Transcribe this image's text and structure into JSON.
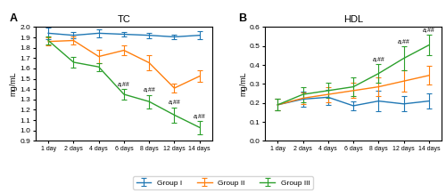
{
  "chart_data": [
    {
      "type": "line",
      "panel_label": "A",
      "title": "TC",
      "y_label": "mg/mL",
      "categories": [
        "1 day",
        "2 days",
        "4 days",
        "6 days",
        "8 days",
        "12 days",
        "14 days"
      ],
      "ylim": [
        0.9,
        2.0
      ],
      "yticks": [
        0.9,
        {
          "value": 1,
          "label": "1.0"
        },
        1.1,
        1.2,
        1.3,
        1.4,
        1.5,
        1.6,
        1.7,
        1.8,
        1.9,
        {
          "value": 2,
          "label": "2.0"
        }
      ],
      "legend": "lower center",
      "series": [
        {
          "name": "Group I",
          "values": [
            1.94,
            1.92,
            1.94,
            1.93,
            1.92,
            1.905,
            1.92
          ],
          "errors": [
            0.055,
            0.03,
            0.04,
            0.025,
            0.025,
            0.02,
            0.04
          ]
        },
        {
          "name": "Group II",
          "values": [
            1.86,
            1.87,
            1.715,
            1.775,
            1.655,
            1.41,
            1.525
          ],
          "errors": [
            0.04,
            0.04,
            0.065,
            0.05,
            0.075,
            0.04,
            0.055
          ]
        },
        {
          "name": "Group III",
          "values": [
            1.87,
            1.66,
            1.615,
            1.35,
            1.28,
            1.15,
            1.03
          ],
          "errors": [
            0.04,
            0.05,
            0.04,
            0.055,
            0.065,
            0.075,
            0.065
          ]
        }
      ],
      "annotations": [
        {
          "text": "a,##",
          "series": "Group III",
          "category": "6 days"
        },
        {
          "text": "a,##",
          "series": "Group III",
          "category": "8 days"
        },
        {
          "text": "a,##",
          "series": "Group III",
          "category": "12 days"
        },
        {
          "text": "a,##",
          "series": "Group III",
          "category": "14 days"
        }
      ]
    },
    {
      "type": "line",
      "panel_label": "B",
      "title": "HDL",
      "y_label": "mg/mL",
      "categories": [
        "1 day",
        "2 days",
        "4 days",
        "6 days",
        "8 days",
        "12 days",
        "14 days"
      ],
      "ylim": [
        0,
        0.6
      ],
      "yticks": [
        {
          "value": 0,
          "label": "0.0"
        },
        0.1,
        0.2,
        0.3,
        0.4,
        0.5,
        0.6
      ],
      "series": [
        {
          "name": "Group I",
          "values": [
            0.19,
            0.22,
            0.23,
            0.185,
            0.21,
            0.195,
            0.21
          ],
          "errors": [
            0.03,
            0.04,
            0.04,
            0.025,
            0.055,
            0.04,
            0.04
          ]
        },
        {
          "name": "Group II",
          "values": [
            0.19,
            0.225,
            0.245,
            0.265,
            0.285,
            0.315,
            0.345
          ],
          "errors": [
            0.03,
            0.03,
            0.04,
            0.04,
            0.05,
            0.055,
            0.05
          ]
        },
        {
          "name": "Group III",
          "values": [
            0.19,
            0.245,
            0.265,
            0.285,
            0.355,
            0.435,
            0.505
          ],
          "errors": [
            0.03,
            0.04,
            0.04,
            0.05,
            0.05,
            0.065,
            0.055
          ]
        }
      ],
      "annotations": [
        {
          "text": "a,##",
          "series": "Group III",
          "category": "8 days"
        },
        {
          "text": "a,##",
          "series": "Group III",
          "category": "12 days"
        },
        {
          "text": "a,##",
          "series": "Group III",
          "category": "14 days"
        }
      ]
    }
  ]
}
